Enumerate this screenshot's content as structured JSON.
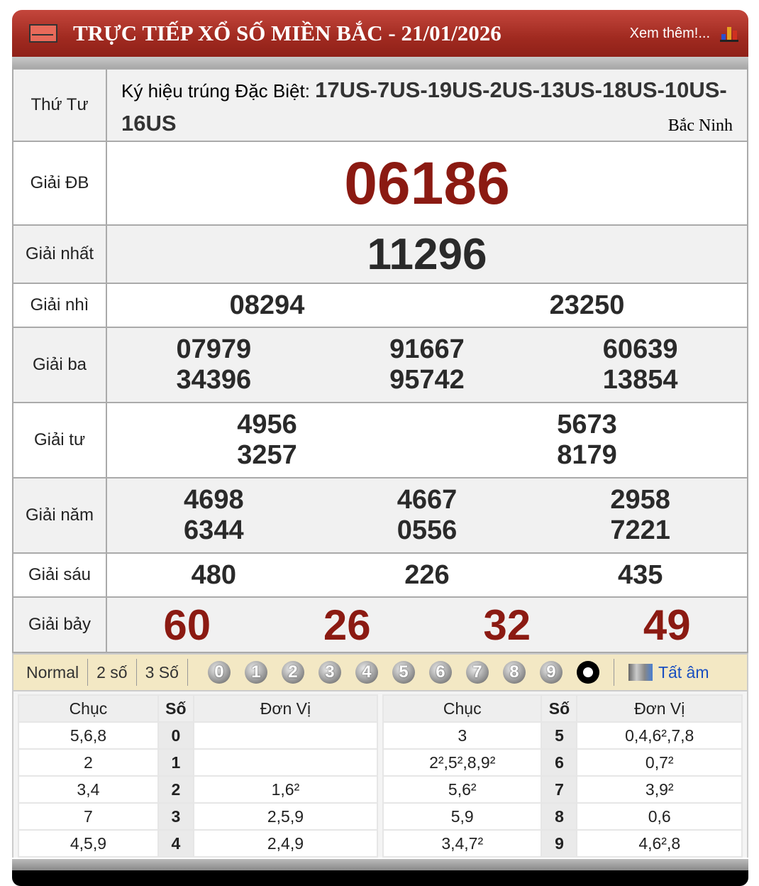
{
  "header": {
    "title": "TRỰC TIẾP XỔ SỐ MIỀN BẮC - 21/01/2026",
    "more_link": "Xem thêm!..."
  },
  "info": {
    "weekday": "Thứ Tư",
    "symbol_label": "Ký hiệu trúng Đặc Biệt: ",
    "symbols": "17US-7US-19US-2US-13US-18US-10US-16US",
    "province": "Bắc Ninh"
  },
  "prizes": [
    {
      "label": "Giải ĐB",
      "numbers": [
        "06186"
      ]
    },
    {
      "label": "Giải nhất",
      "numbers": [
        "11296"
      ]
    },
    {
      "label": "Giải nhì",
      "numbers": [
        "08294",
        "23250"
      ]
    },
    {
      "label": "Giải ba",
      "numbers": [
        "07979",
        "91667",
        "60639",
        "34396",
        "95742",
        "13854"
      ]
    },
    {
      "label": "Giải tư",
      "numbers": [
        "4956",
        "5673",
        "3257",
        "8179"
      ]
    },
    {
      "label": "Giải năm",
      "numbers": [
        "4698",
        "4667",
        "2958",
        "6344",
        "0556",
        "7221"
      ]
    },
    {
      "label": "Giải sáu",
      "numbers": [
        "480",
        "226",
        "435"
      ]
    },
    {
      "label": "Giải bảy",
      "numbers": [
        "60",
        "26",
        "32",
        "49"
      ]
    }
  ],
  "colors": {
    "special": "#8b1a12",
    "header": "#a52a20",
    "toolbar": "#f3e8c4",
    "link": "#1a4fc0"
  },
  "toolbar": {
    "tabs": [
      "Normal",
      "2 số",
      "3 Số"
    ],
    "digits": [
      "0",
      "1",
      "2",
      "3",
      "4",
      "5",
      "6",
      "7",
      "8",
      "9"
    ],
    "tat_am": "Tất âm"
  },
  "loto": {
    "headers": [
      "Chục",
      "Số",
      "Đơn Vị"
    ],
    "left": [
      [
        "5,6,8",
        "0",
        ""
      ],
      [
        "2",
        "1",
        ""
      ],
      [
        "3,4",
        "2",
        "1,6²"
      ],
      [
        "7",
        "3",
        "2,5,9"
      ],
      [
        "4,5,9",
        "4",
        "2,4,9"
      ]
    ],
    "right": [
      [
        "3",
        "5",
        "0,4,6²,7,8"
      ],
      [
        "2²,5²,8,9²",
        "6",
        "0,7²"
      ],
      [
        "5,6²",
        "7",
        "3,9²"
      ],
      [
        "5,9",
        "8",
        "0,6"
      ],
      [
        "3,4,7²",
        "9",
        "4,6²,8"
      ]
    ]
  }
}
